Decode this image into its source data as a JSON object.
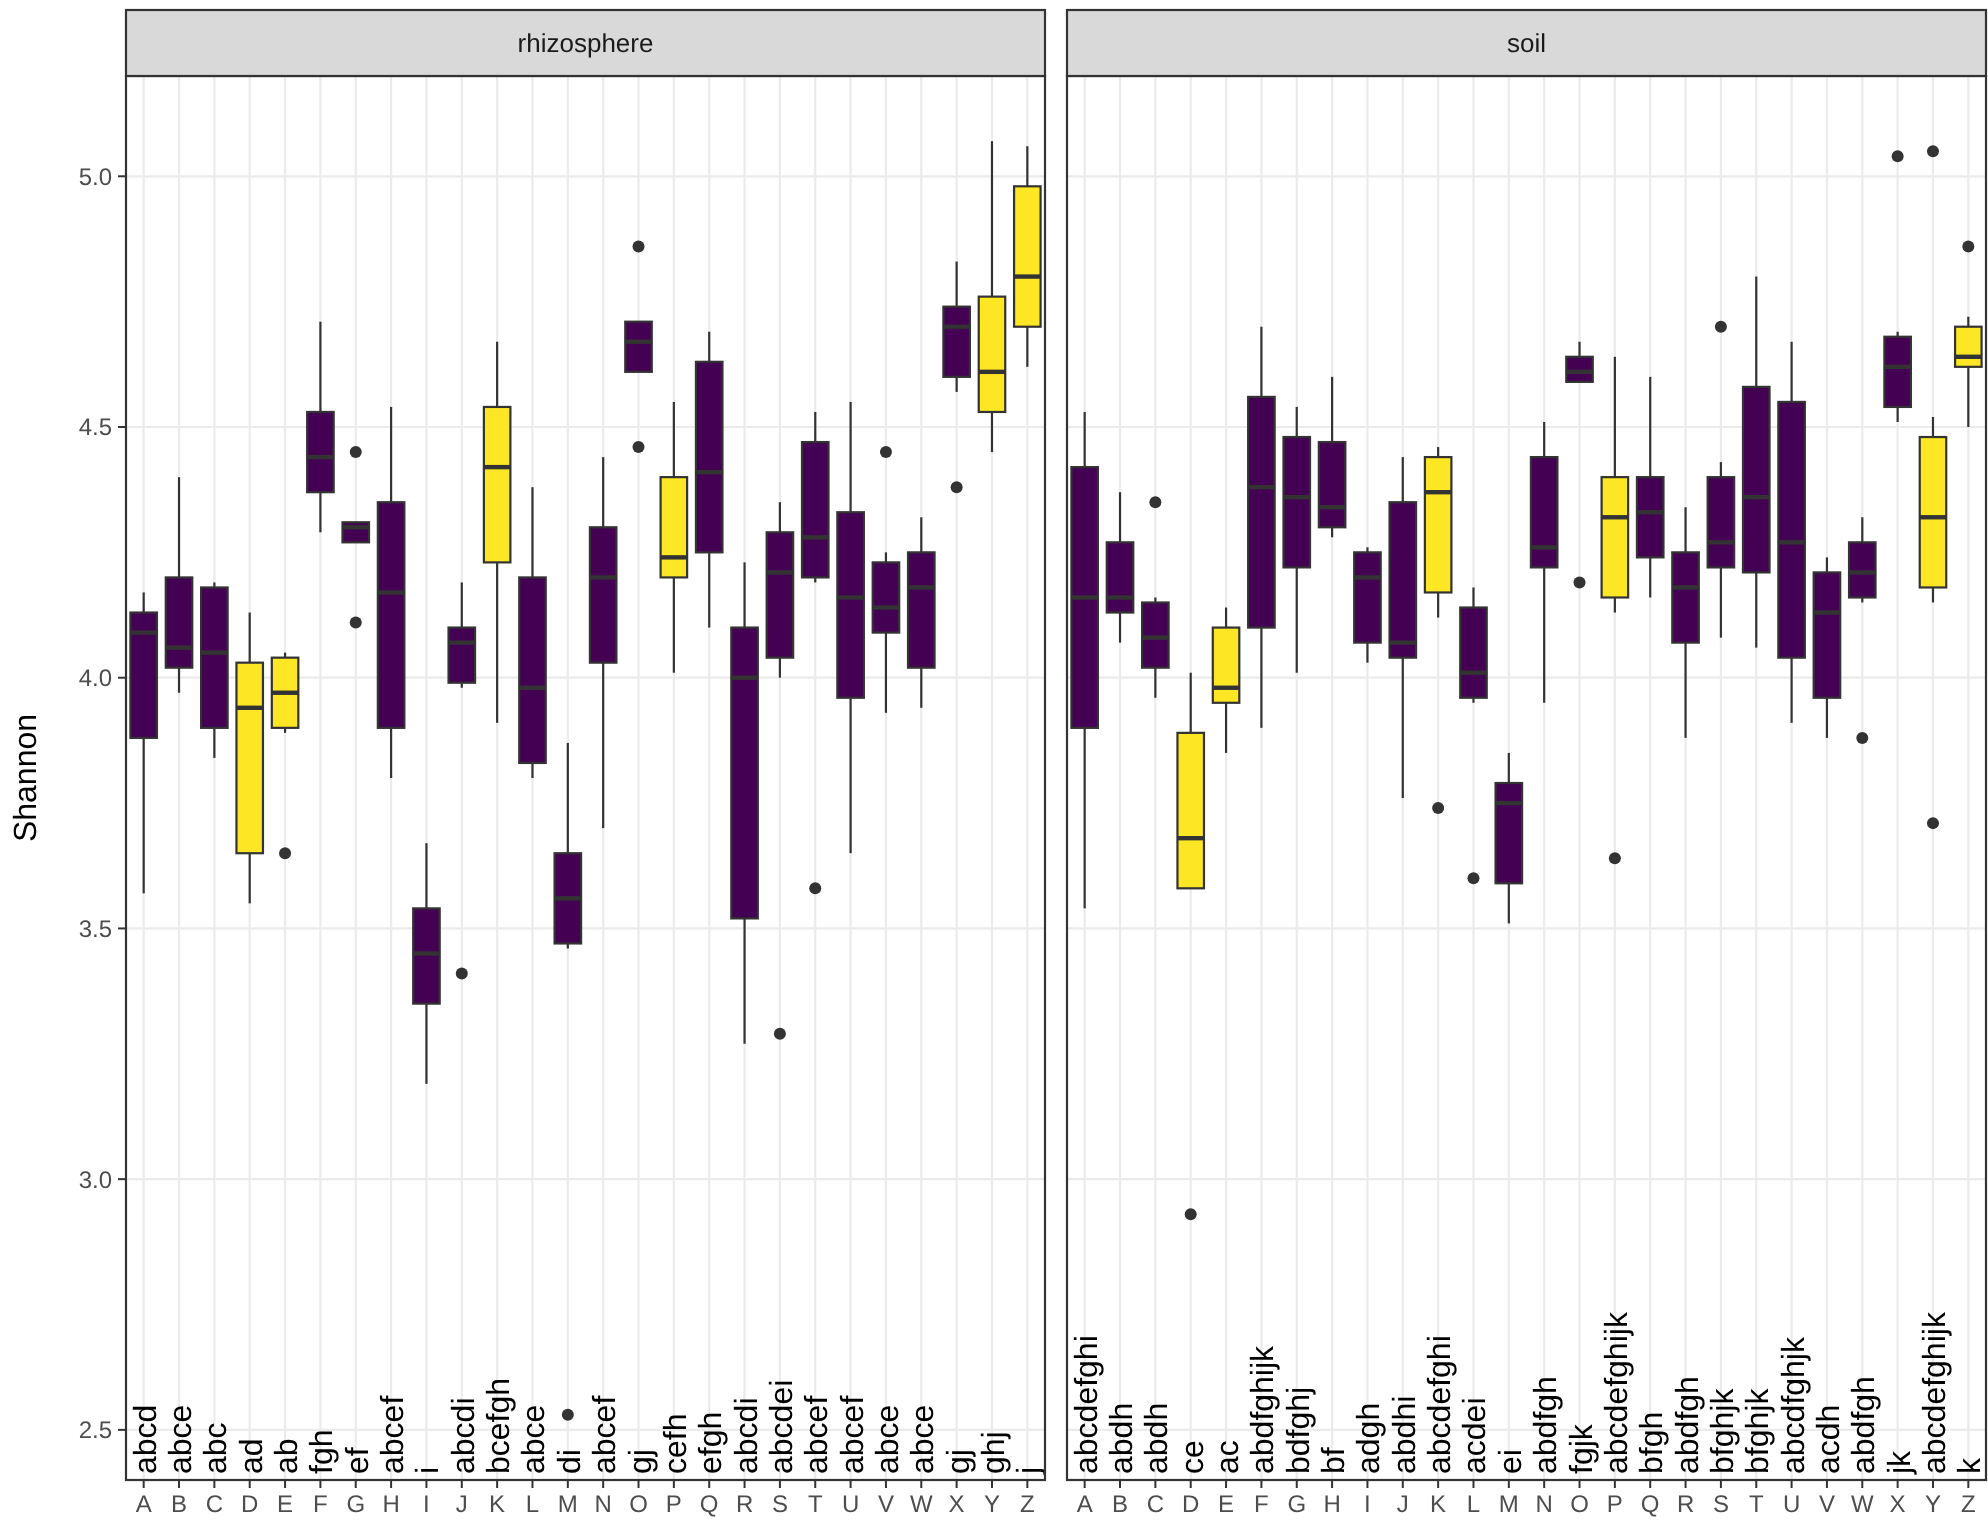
{
  "chart_data": [
    {
      "type": "box",
      "title": "rhizosphere",
      "ylabel": "Shannon",
      "categories": [
        "A",
        "B",
        "C",
        "D",
        "E",
        "F",
        "G",
        "H",
        "I",
        "J",
        "K",
        "L",
        "M",
        "N",
        "O",
        "P",
        "Q",
        "R",
        "S",
        "T",
        "U",
        "V",
        "W",
        "X",
        "Y",
        "Z"
      ],
      "colors": [
        "#440154",
        "#440154",
        "#440154",
        "#fde725",
        "#fde725",
        "#440154",
        "#440154",
        "#440154",
        "#440154",
        "#440154",
        "#fde725",
        "#440154",
        "#440154",
        "#440154",
        "#440154",
        "#fde725",
        "#440154",
        "#440154",
        "#440154",
        "#440154",
        "#440154",
        "#440154",
        "#440154",
        "#440154",
        "#fde725",
        "#fde725"
      ],
      "boxes": [
        {
          "low": 3.57,
          "q1": 3.88,
          "median": 4.09,
          "q3": 4.13,
          "high": 4.17
        },
        {
          "low": 3.97,
          "q1": 4.02,
          "median": 4.06,
          "q3": 4.2,
          "high": 4.4
        },
        {
          "low": 3.84,
          "q1": 3.9,
          "median": 4.05,
          "q3": 4.18,
          "high": 4.19
        },
        {
          "low": 3.55,
          "q1": 3.65,
          "median": 3.94,
          "q3": 4.03,
          "high": 4.13
        },
        {
          "low": 3.89,
          "q1": 3.9,
          "median": 3.97,
          "q3": 4.04,
          "high": 4.05,
          "outliers": [
            3.65
          ]
        },
        {
          "low": 4.29,
          "q1": 4.37,
          "median": 4.44,
          "q3": 4.53,
          "high": 4.71
        },
        {
          "low": 4.27,
          "q1": 4.27,
          "median": 4.3,
          "q3": 4.31,
          "high": 4.31,
          "outliers": [
            4.45,
            4.11
          ]
        },
        {
          "low": 3.8,
          "q1": 3.9,
          "median": 4.17,
          "q3": 4.35,
          "high": 4.54
        },
        {
          "low": 3.19,
          "q1": 3.35,
          "median": 3.45,
          "q3": 3.54,
          "high": 3.67
        },
        {
          "low": 3.98,
          "q1": 3.99,
          "median": 4.07,
          "q3": 4.1,
          "high": 4.19,
          "outliers": [
            3.41
          ]
        },
        {
          "low": 3.91,
          "q1": 4.23,
          "median": 4.42,
          "q3": 4.54,
          "high": 4.67
        },
        {
          "low": 3.8,
          "q1": 3.83,
          "median": 3.98,
          "q3": 4.2,
          "high": 4.38
        },
        {
          "low": 3.46,
          "q1": 3.47,
          "median": 3.56,
          "q3": 3.65,
          "high": 3.87,
          "outliers": [
            2.53
          ]
        },
        {
          "low": 3.7,
          "q1": 4.03,
          "median": 4.2,
          "q3": 4.3,
          "high": 4.44
        },
        {
          "low": 4.61,
          "q1": 4.61,
          "median": 4.67,
          "q3": 4.71,
          "high": 4.71,
          "outliers": [
            4.86,
            4.46
          ]
        },
        {
          "low": 4.01,
          "q1": 4.2,
          "median": 4.24,
          "q3": 4.4,
          "high": 4.55
        },
        {
          "low": 4.1,
          "q1": 4.25,
          "median": 4.41,
          "q3": 4.63,
          "high": 4.69
        },
        {
          "low": 3.27,
          "q1": 3.52,
          "median": 4.0,
          "q3": 4.1,
          "high": 4.23
        },
        {
          "low": 4.0,
          "q1": 4.04,
          "median": 4.21,
          "q3": 4.29,
          "high": 4.35,
          "outliers": [
            3.29
          ]
        },
        {
          "low": 4.19,
          "q1": 4.2,
          "median": 4.28,
          "q3": 4.47,
          "high": 4.53,
          "outliers": [
            3.58
          ]
        },
        {
          "low": 3.65,
          "q1": 3.96,
          "median": 4.16,
          "q3": 4.33,
          "high": 4.55
        },
        {
          "low": 3.93,
          "q1": 4.09,
          "median": 4.14,
          "q3": 4.23,
          "high": 4.25,
          "outliers": [
            4.45
          ]
        },
        {
          "low": 3.94,
          "q1": 4.02,
          "median": 4.18,
          "q3": 4.25,
          "high": 4.32
        },
        {
          "low": 4.57,
          "q1": 4.6,
          "median": 4.7,
          "q3": 4.74,
          "high": 4.83,
          "outliers": [
            4.38
          ]
        },
        {
          "low": 4.45,
          "q1": 4.53,
          "median": 4.61,
          "q3": 4.76,
          "high": 5.07
        },
        {
          "low": 4.62,
          "q1": 4.7,
          "median": 4.8,
          "q3": 4.98,
          "high": 5.06
        }
      ],
      "annotations": [
        "abcd",
        "abce",
        "abc",
        "ad",
        "ab",
        "fgh",
        "ef",
        "abcef",
        "i",
        "abcdi",
        "bcefgh",
        "abce",
        "di",
        "abcef",
        "gj",
        "cefh",
        "efgh",
        "abcdi",
        "abcdei",
        "abcef",
        "abcef",
        "abce",
        "abce",
        "gj",
        "ghj",
        "j"
      ],
      "ylim": [
        2.4,
        5.2
      ],
      "yticks": [
        {
          "value": 2.5,
          "label": "2.5"
        },
        {
          "value": 3,
          "label": "3.0"
        },
        {
          "value": 3.5,
          "label": "3.5"
        },
        {
          "value": 4,
          "label": "4.0"
        },
        {
          "value": 4.5,
          "label": "4.5"
        },
        {
          "value": 5,
          "label": "5.0"
        }
      ],
      "grid": true
    },
    {
      "type": "box",
      "title": "soil",
      "categories": [
        "A",
        "B",
        "C",
        "D",
        "E",
        "F",
        "G",
        "H",
        "I",
        "J",
        "K",
        "L",
        "M",
        "N",
        "O",
        "P",
        "Q",
        "R",
        "S",
        "T",
        "U",
        "V",
        "W",
        "X",
        "Y",
        "Z"
      ],
      "colors": [
        "#440154",
        "#440154",
        "#440154",
        "#fde725",
        "#fde725",
        "#440154",
        "#440154",
        "#440154",
        "#440154",
        "#440154",
        "#fde725",
        "#440154",
        "#440154",
        "#440154",
        "#440154",
        "#fde725",
        "#440154",
        "#440154",
        "#440154",
        "#440154",
        "#440154",
        "#440154",
        "#440154",
        "#440154",
        "#fde725",
        "#fde725"
      ],
      "boxes": [
        {
          "low": 3.54,
          "q1": 3.9,
          "median": 4.16,
          "q3": 4.42,
          "high": 4.53
        },
        {
          "low": 4.07,
          "q1": 4.13,
          "median": 4.16,
          "q3": 4.27,
          "high": 4.37
        },
        {
          "low": 3.96,
          "q1": 4.02,
          "median": 4.08,
          "q3": 4.15,
          "high": 4.16,
          "outliers": [
            4.35
          ]
        },
        {
          "low": 3.58,
          "q1": 3.58,
          "median": 3.68,
          "q3": 3.89,
          "high": 4.01,
          "outliers": [
            2.93
          ]
        },
        {
          "low": 3.85,
          "q1": 3.95,
          "median": 3.98,
          "q3": 4.1,
          "high": 4.14
        },
        {
          "low": 3.9,
          "q1": 4.1,
          "median": 4.38,
          "q3": 4.56,
          "high": 4.7
        },
        {
          "low": 4.01,
          "q1": 4.22,
          "median": 4.36,
          "q3": 4.48,
          "high": 4.54
        },
        {
          "low": 4.28,
          "q1": 4.3,
          "median": 4.34,
          "q3": 4.47,
          "high": 4.6
        },
        {
          "low": 4.03,
          "q1": 4.07,
          "median": 4.2,
          "q3": 4.25,
          "high": 4.26
        },
        {
          "low": 3.76,
          "q1": 4.04,
          "median": 4.07,
          "q3": 4.35,
          "high": 4.44
        },
        {
          "low": 4.12,
          "q1": 4.17,
          "median": 4.37,
          "q3": 4.44,
          "high": 4.46,
          "outliers": [
            3.74
          ]
        },
        {
          "low": 3.95,
          "q1": 3.96,
          "median": 4.01,
          "q3": 4.14,
          "high": 4.18,
          "outliers": [
            3.6
          ]
        },
        {
          "low": 3.51,
          "q1": 3.59,
          "median": 3.75,
          "q3": 3.79,
          "high": 3.85
        },
        {
          "low": 3.95,
          "q1": 4.22,
          "median": 4.26,
          "q3": 4.44,
          "high": 4.51
        },
        {
          "low": 4.59,
          "q1": 4.59,
          "median": 4.61,
          "q3": 4.64,
          "high": 4.67,
          "outliers": [
            4.19
          ]
        },
        {
          "low": 4.13,
          "q1": 4.16,
          "median": 4.32,
          "q3": 4.4,
          "high": 4.64,
          "outliers": [
            3.64
          ]
        },
        {
          "low": 4.16,
          "q1": 4.24,
          "median": 4.33,
          "q3": 4.4,
          "high": 4.6
        },
        {
          "low": 3.88,
          "q1": 4.07,
          "median": 4.18,
          "q3": 4.25,
          "high": 4.34
        },
        {
          "low": 4.08,
          "q1": 4.22,
          "median": 4.27,
          "q3": 4.4,
          "high": 4.43,
          "outliers": [
            4.7
          ]
        },
        {
          "low": 4.06,
          "q1": 4.21,
          "median": 4.36,
          "q3": 4.58,
          "high": 4.8
        },
        {
          "low": 3.91,
          "q1": 4.04,
          "median": 4.27,
          "q3": 4.55,
          "high": 4.67
        },
        {
          "low": 3.88,
          "q1": 3.96,
          "median": 4.13,
          "q3": 4.21,
          "high": 4.24
        },
        {
          "low": 4.15,
          "q1": 4.16,
          "median": 4.21,
          "q3": 4.27,
          "high": 4.32,
          "outliers": [
            3.88
          ]
        },
        {
          "low": 4.51,
          "q1": 4.54,
          "median": 4.62,
          "q3": 4.68,
          "high": 4.69,
          "outliers": [
            5.04
          ]
        },
        {
          "low": 4.15,
          "q1": 4.18,
          "median": 4.32,
          "q3": 4.48,
          "high": 4.52,
          "outliers": [
            5.05,
            3.71
          ]
        },
        {
          "low": 4.5,
          "q1": 4.62,
          "median": 4.64,
          "q3": 4.7,
          "high": 4.72,
          "outliers": [
            4.86
          ]
        }
      ],
      "annotations": [
        "abcdefghi",
        "abdh",
        "abdh",
        "ce",
        "ac",
        "abdfghijk",
        "bdfghj",
        "bf",
        "adgh",
        "abdhi",
        "abcdefghi",
        "acdei",
        "ei",
        "abdfgh",
        "fgjk",
        "abcdefghijk",
        "bfgh",
        "abdfgh",
        "bfghjk",
        "bfghjk",
        "abcdfghjk",
        "acdh",
        "abdfgh",
        "jk",
        "abcdefghijk",
        "k"
      ],
      "ylim": [
        2.4,
        5.2
      ],
      "yticks": [
        2.5,
        3,
        3.5,
        4,
        4.5,
        5
      ],
      "grid": true,
      "tick_labels": "x"
    }
  ]
}
